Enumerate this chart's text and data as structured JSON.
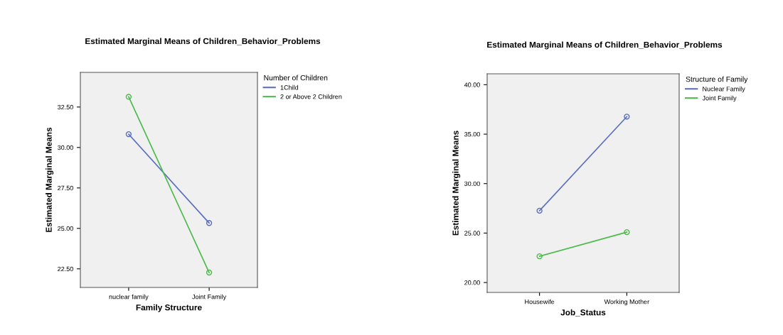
{
  "chart_data": [
    {
      "type": "line",
      "title": "Estimated Marginal Means of Children_Behavior_Problems",
      "xlabel": "Family Structure",
      "ylabel": "Estimated Marginal Means",
      "legend_title": "Number of Children",
      "categories": [
        "nuclear family",
        "Joint Family"
      ],
      "series": [
        {
          "name": "1Child",
          "color": "#5b6fbf",
          "values": [
            30.82,
            25.33
          ]
        },
        {
          "name": "2 or Above 2 Children",
          "color": "#4cbb4c",
          "values": [
            33.13,
            22.27
          ]
        }
      ],
      "ylim": [
        21.35,
        34.64
      ],
      "yticks": [
        {
          "value": 22.5,
          "label": "22.50"
        },
        {
          "value": 25,
          "label": "25.00"
        },
        {
          "value": 27.5,
          "label": "27.50"
        },
        {
          "value": 30,
          "label": "30.00"
        },
        {
          "value": 32.5,
          "label": "32.50"
        }
      ],
      "marker": "circle",
      "legend": "right",
      "grid": false
    },
    {
      "type": "line",
      "title": "Estimated Marginal Means of Children_Behavior_Problems",
      "xlabel": "Job_Status",
      "ylabel": "Estimated Marginal Means",
      "legend_title": "Structure of Family",
      "categories": [
        "Housewife",
        "Working Mother"
      ],
      "series": [
        {
          "name": "Nuclear Family",
          "color": "#5b6fbf",
          "values": [
            27.26,
            36.77
          ]
        },
        {
          "name": "Joint Family",
          "color": "#4cbb4c",
          "values": [
            22.65,
            25.09
          ]
        }
      ],
      "ylim": [
        19.0,
        41.1
      ],
      "yticks": [
        {
          "value": 20,
          "label": "20.00"
        },
        {
          "value": 25,
          "label": "25.00"
        },
        {
          "value": 30,
          "label": "30.00"
        },
        {
          "value": 35,
          "label": "35.00"
        },
        {
          "value": 40,
          "label": "40.00"
        }
      ],
      "marker": "circle",
      "legend": "right",
      "grid": false
    }
  ]
}
